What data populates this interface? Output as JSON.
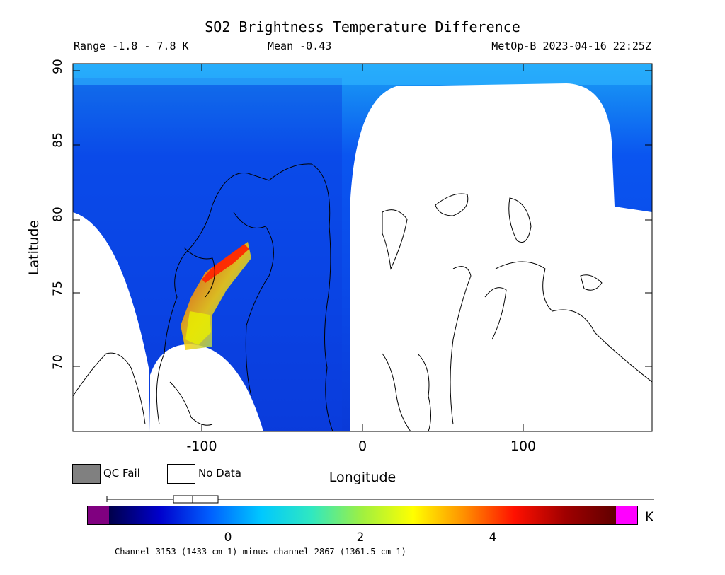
{
  "title": "SO2 Brightness Temperature Difference",
  "stats": {
    "range": "Range -1.8 - 7.8 K",
    "mean": "Mean -0.43",
    "satellite": "MetOp-B 2023-04-16 22:25Z"
  },
  "axes": {
    "xlabel": "Longitude",
    "ylabel": "Latitude",
    "xticks": [
      "-100",
      "0",
      "100"
    ],
    "yticks": [
      "90",
      "85",
      "80",
      "75",
      "70"
    ]
  },
  "legend": {
    "qc_fail": "QC Fail",
    "no_data": "No Data",
    "qc_fail_color": "#808080",
    "no_data_color": "#ffffff"
  },
  "colorbar": {
    "ticks": [
      "0",
      "2",
      "4"
    ],
    "units": "K",
    "low_color": "#800080",
    "high_color": "#ff00ff",
    "stops": [
      "#00004a",
      "#0000cc",
      "#0060ff",
      "#00c8ff",
      "#30e8c0",
      "#a0f040",
      "#ffff00",
      "#ff9000",
      "#ff1000",
      "#a00000",
      "#600000"
    ]
  },
  "footnote": "Channel 3153 (1433 cm-1) minus channel 2867 (1361.5 cm-1)",
  "chart_data": {
    "type": "heatmap",
    "title": "SO2 Brightness Temperature Difference",
    "xlabel": "Longitude",
    "ylabel": "Latitude",
    "units": "K",
    "value_range": [
      -1.8,
      7.8
    ],
    "mean": -0.43,
    "xlim": [
      -180,
      180
    ],
    "ylim": [
      66,
      90
    ],
    "colorbar_range": [
      -2,
      6
    ],
    "colorbar_ticks": [
      0,
      2,
      4
    ]
  }
}
